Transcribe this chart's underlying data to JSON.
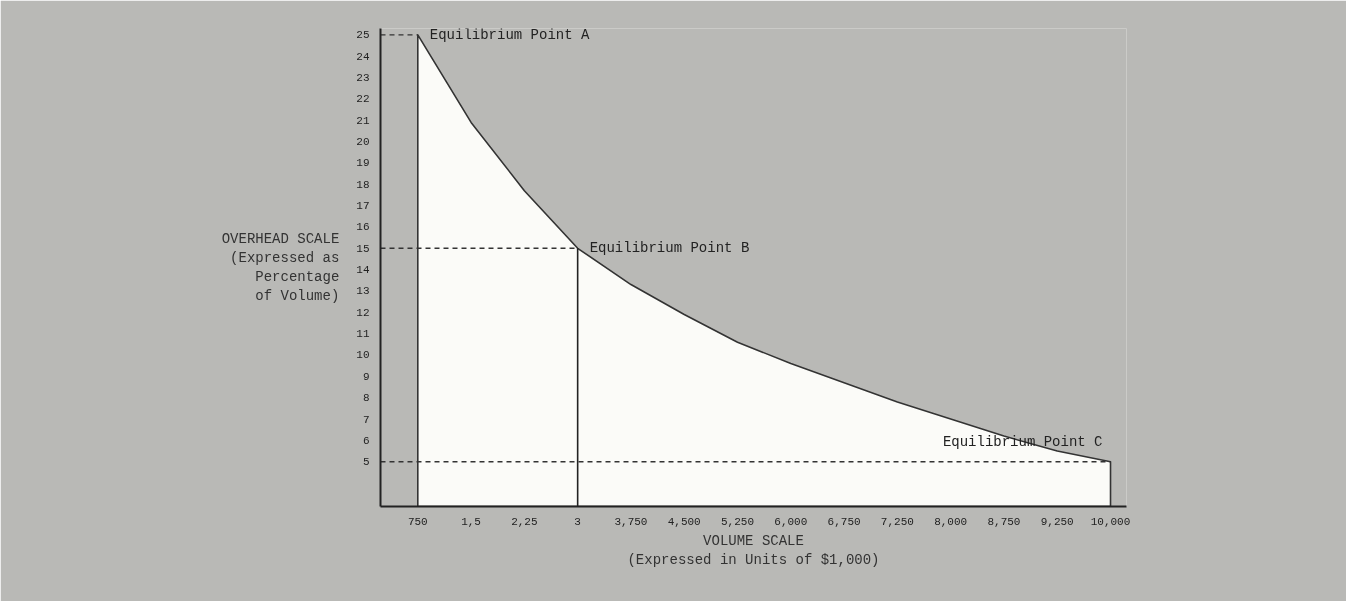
{
  "chart_data": {
    "type": "area",
    "categories": [
      "750",
      "1,5",
      "2,25",
      "3",
      "3,750",
      "4,500",
      "5,250",
      "6,000",
      "6,750",
      "7,250",
      "8,000",
      "8,750",
      "9,250",
      "10,000"
    ],
    "values": [
      25,
      20.9,
      17.7,
      15,
      13.3,
      11.9,
      10.6,
      9.6,
      8.7,
      7.8,
      7.0,
      6.2,
      5.5,
      5
    ],
    "color": "#fbfbf8",
    "ylim": [
      2.9,
      25.3
    ],
    "yticks": [
      5,
      6,
      7,
      8,
      9,
      10,
      11,
      12,
      13,
      14,
      15,
      16,
      17,
      18,
      19,
      20,
      21,
      22,
      23,
      24,
      25
    ],
    "xlabel": "VOLUME SCALE\n(Expressed in Units of $1,000)",
    "ylabel": "OVERHEAD SCALE\n(Expressed as\nPercentage\nof Volume)",
    "annotations": [
      {
        "text": "Equilibrium Point A",
        "x": "750",
        "y": 25
      },
      {
        "text": "Equilibrium Point B",
        "x": "3",
        "y": 15
      },
      {
        "text": "Equilibrium Point C",
        "x": "10,000",
        "y": 5
      }
    ],
    "ref_lines": [
      {
        "axis": "y",
        "value": 5,
        "label": null,
        "line_style": "dashed"
      }
    ],
    "grid": false
  }
}
